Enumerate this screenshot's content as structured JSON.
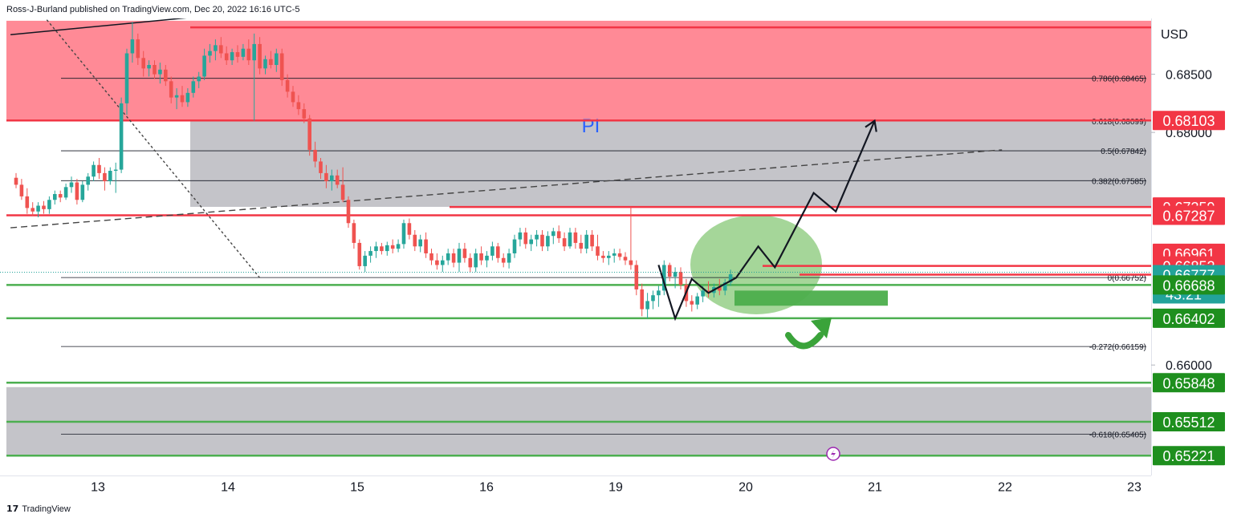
{
  "header": {
    "publisher": "Ross-J-Burland published on TradingView.com, Dec 20, 2022 16:16 UTC-5"
  },
  "footer": {
    "brand": "TradingView",
    "logo_glyph": "17"
  },
  "zone_label": "PI",
  "currency": "USD",
  "countdown": "43:21",
  "colors": {
    "up": "#26a69a",
    "down": "#ef5350",
    "resistance": "#f23645",
    "support": "#4caf50",
    "zone_red": "#ff8a96",
    "zone_gray": "#c4c4c9",
    "ellipse": "#8fcc7f",
    "current": "#22a39a"
  },
  "chart_data": {
    "type": "candlestick",
    "y_axis": {
      "range": [
        0.6505,
        0.6898
      ],
      "ticks": [
        "0.68500",
        "0.68000",
        "0.66000"
      ]
    },
    "x_axis": {
      "ticks": [
        "13",
        "14",
        "15",
        "16",
        "19",
        "20",
        "21",
        "22",
        "23"
      ]
    },
    "price_tags": [
      {
        "label": "0.68103",
        "value": 0.68103,
        "color": "#f23645"
      },
      {
        "label": "0.67359",
        "value": 0.67359,
        "color": "#f23645"
      },
      {
        "label": "0.67287",
        "value": 0.67287,
        "color": "#f23645"
      },
      {
        "label": "0.66961",
        "value": 0.66961,
        "color": "#f23645"
      },
      {
        "label": "0.66852",
        "value": 0.66852,
        "color": "#f23645"
      },
      {
        "label": "0.66777",
        "value": 0.66777,
        "color": "#22a39a"
      },
      {
        "label": "0.66688",
        "value": 0.66688,
        "color": "#1e8f1e"
      },
      {
        "label": "0.66402",
        "value": 0.66402,
        "color": "#1e8f1e"
      },
      {
        "label": "0.65848",
        "value": 0.65848,
        "color": "#1e8f1e"
      },
      {
        "label": "0.65512",
        "value": 0.65512,
        "color": "#1e8f1e"
      },
      {
        "label": "0.65221",
        "value": 0.65221,
        "color": "#1e8f1e"
      }
    ],
    "fib_levels": [
      {
        "label": "0.786(0.68465)",
        "value": 0.68465
      },
      {
        "label": "0.618(0.68099)",
        "value": 0.68099
      },
      {
        "label": "0.5(0.67842)",
        "value": 0.67842
      },
      {
        "label": "0.382(0.67585)",
        "value": 0.67585
      },
      {
        "label": "0(0.66752)",
        "value": 0.66752
      },
      {
        "label": "-0.272(0.66159)",
        "value": 0.66159
      },
      {
        "label": "-0.618(0.65405)",
        "value": 0.65405
      }
    ],
    "horizontal_lines": [
      {
        "value": 0.68903,
        "color": "#f23645"
      },
      {
        "value": 0.68103,
        "color": "#f23645"
      },
      {
        "value": 0.67359,
        "color": "#f23645"
      },
      {
        "value": 0.67287,
        "color": "#f23645"
      },
      {
        "value": 0.66852,
        "color": "#f23645"
      },
      {
        "value": 0.66777,
        "color": "#f23645"
      },
      {
        "value": 0.66688,
        "color": "#4caf50"
      },
      {
        "value": 0.66402,
        "color": "#4caf50"
      },
      {
        "value": 0.65848,
        "color": "#4caf50"
      },
      {
        "value": 0.65512,
        "color": "#4caf50"
      },
      {
        "value": 0.65221,
        "color": "#4caf50"
      }
    ],
    "zones": [
      {
        "name": "red-supply",
        "y1": 0.6896,
        "y2": 0.68103
      },
      {
        "name": "gray-pi",
        "y1": 0.68103,
        "y2": 0.6736
      },
      {
        "name": "gray-lower",
        "y1": 0.6581,
        "y2": 0.6522
      }
    ],
    "candles": [
      {
        "o": 0.6761,
        "h": 0.6765,
        "l": 0.6752,
        "c": 0.6755
      },
      {
        "o": 0.6755,
        "h": 0.676,
        "l": 0.6742,
        "c": 0.6745
      },
      {
        "o": 0.6745,
        "h": 0.6752,
        "l": 0.673,
        "c": 0.6735
      },
      {
        "o": 0.6735,
        "h": 0.674,
        "l": 0.6728,
        "c": 0.6732
      },
      {
        "o": 0.6732,
        "h": 0.674,
        "l": 0.6727,
        "c": 0.6737
      },
      {
        "o": 0.6737,
        "h": 0.6741,
        "l": 0.673,
        "c": 0.6734
      },
      {
        "o": 0.6734,
        "h": 0.6745,
        "l": 0.673,
        "c": 0.6742
      },
      {
        "o": 0.6742,
        "h": 0.675,
        "l": 0.6738,
        "c": 0.6747
      },
      {
        "o": 0.6747,
        "h": 0.675,
        "l": 0.674,
        "c": 0.6744
      },
      {
        "o": 0.6744,
        "h": 0.6756,
        "l": 0.6742,
        "c": 0.6753
      },
      {
        "o": 0.6753,
        "h": 0.6762,
        "l": 0.6748,
        "c": 0.6757
      },
      {
        "o": 0.6757,
        "h": 0.676,
        "l": 0.6738,
        "c": 0.6742
      },
      {
        "o": 0.6742,
        "h": 0.6758,
        "l": 0.674,
        "c": 0.6755
      },
      {
        "o": 0.6755,
        "h": 0.6765,
        "l": 0.675,
        "c": 0.6762
      },
      {
        "o": 0.6762,
        "h": 0.6775,
        "l": 0.6758,
        "c": 0.6772
      },
      {
        "o": 0.6772,
        "h": 0.6778,
        "l": 0.676,
        "c": 0.6765
      },
      {
        "o": 0.6765,
        "h": 0.677,
        "l": 0.675,
        "c": 0.6758
      },
      {
        "o": 0.6758,
        "h": 0.677,
        "l": 0.6755,
        "c": 0.6767
      },
      {
        "o": 0.6767,
        "h": 0.6774,
        "l": 0.6748,
        "c": 0.6768
      },
      {
        "o": 0.6768,
        "h": 0.683,
        "l": 0.6765,
        "c": 0.6825
      },
      {
        "o": 0.6825,
        "h": 0.6872,
        "l": 0.6815,
        "c": 0.6868
      },
      {
        "o": 0.6868,
        "h": 0.6895,
        "l": 0.686,
        "c": 0.688
      },
      {
        "o": 0.688,
        "h": 0.6885,
        "l": 0.6858,
        "c": 0.6864
      },
      {
        "o": 0.6864,
        "h": 0.687,
        "l": 0.6848,
        "c": 0.6855
      },
      {
        "o": 0.6855,
        "h": 0.6862,
        "l": 0.6848,
        "c": 0.6858
      },
      {
        "o": 0.6858,
        "h": 0.6862,
        "l": 0.6846,
        "c": 0.685
      },
      {
        "o": 0.685,
        "h": 0.686,
        "l": 0.6842,
        "c": 0.6854
      },
      {
        "o": 0.6854,
        "h": 0.6858,
        "l": 0.684,
        "c": 0.6844
      },
      {
        "o": 0.6844,
        "h": 0.6848,
        "l": 0.6825,
        "c": 0.683
      },
      {
        "o": 0.683,
        "h": 0.6838,
        "l": 0.682,
        "c": 0.6832
      },
      {
        "o": 0.6832,
        "h": 0.684,
        "l": 0.6822,
        "c": 0.6826
      },
      {
        "o": 0.6826,
        "h": 0.6838,
        "l": 0.6822,
        "c": 0.6834
      },
      {
        "o": 0.6834,
        "h": 0.6848,
        "l": 0.683,
        "c": 0.6844
      },
      {
        "o": 0.6844,
        "h": 0.6852,
        "l": 0.6838,
        "c": 0.6848
      },
      {
        "o": 0.6848,
        "h": 0.6872,
        "l": 0.6845,
        "c": 0.6866
      },
      {
        "o": 0.6866,
        "h": 0.6876,
        "l": 0.686,
        "c": 0.687
      },
      {
        "o": 0.687,
        "h": 0.688,
        "l": 0.6862,
        "c": 0.6875
      },
      {
        "o": 0.6875,
        "h": 0.6882,
        "l": 0.6864,
        "c": 0.6868
      },
      {
        "o": 0.6868,
        "h": 0.6874,
        "l": 0.6858,
        "c": 0.6862
      },
      {
        "o": 0.6862,
        "h": 0.6872,
        "l": 0.6858,
        "c": 0.6869
      },
      {
        "o": 0.6869,
        "h": 0.6875,
        "l": 0.686,
        "c": 0.6865
      },
      {
        "o": 0.6865,
        "h": 0.6876,
        "l": 0.6862,
        "c": 0.6872
      },
      {
        "o": 0.6872,
        "h": 0.688,
        "l": 0.6858,
        "c": 0.6862
      },
      {
        "o": 0.6862,
        "h": 0.6885,
        "l": 0.681,
        "c": 0.6876
      },
      {
        "o": 0.6876,
        "h": 0.6882,
        "l": 0.685,
        "c": 0.6855
      },
      {
        "o": 0.6855,
        "h": 0.6866,
        "l": 0.685,
        "c": 0.6863
      },
      {
        "o": 0.6863,
        "h": 0.687,
        "l": 0.6855,
        "c": 0.6858
      },
      {
        "o": 0.6858,
        "h": 0.6872,
        "l": 0.6852,
        "c": 0.6868
      },
      {
        "o": 0.6868,
        "h": 0.6872,
        "l": 0.684,
        "c": 0.6845
      },
      {
        "o": 0.6845,
        "h": 0.685,
        "l": 0.683,
        "c": 0.6835
      },
      {
        "o": 0.6835,
        "h": 0.684,
        "l": 0.6822,
        "c": 0.6826
      },
      {
        "o": 0.6826,
        "h": 0.6832,
        "l": 0.6815,
        "c": 0.682
      },
      {
        "o": 0.682,
        "h": 0.6825,
        "l": 0.6808,
        "c": 0.6812
      },
      {
        "o": 0.6812,
        "h": 0.6815,
        "l": 0.678,
        "c": 0.6785
      },
      {
        "o": 0.6785,
        "h": 0.6792,
        "l": 0.677,
        "c": 0.6775
      },
      {
        "o": 0.6775,
        "h": 0.6778,
        "l": 0.676,
        "c": 0.6765
      },
      {
        "o": 0.6765,
        "h": 0.6772,
        "l": 0.6752,
        "c": 0.6758
      },
      {
        "o": 0.6758,
        "h": 0.6768,
        "l": 0.675,
        "c": 0.6763
      },
      {
        "o": 0.6763,
        "h": 0.6768,
        "l": 0.6752,
        "c": 0.6755
      },
      {
        "o": 0.6755,
        "h": 0.677,
        "l": 0.674,
        "c": 0.6742
      },
      {
        "o": 0.6742,
        "h": 0.6745,
        "l": 0.6718,
        "c": 0.6722
      },
      {
        "o": 0.6722,
        "h": 0.6725,
        "l": 0.67,
        "c": 0.6705
      },
      {
        "o": 0.6705,
        "h": 0.6708,
        "l": 0.6682,
        "c": 0.6685
      },
      {
        "o": 0.6685,
        "h": 0.6698,
        "l": 0.668,
        "c": 0.6694
      },
      {
        "o": 0.6694,
        "h": 0.6702,
        "l": 0.6688,
        "c": 0.6698
      },
      {
        "o": 0.6698,
        "h": 0.6706,
        "l": 0.6692,
        "c": 0.6702
      },
      {
        "o": 0.6702,
        "h": 0.6705,
        "l": 0.6695,
        "c": 0.6698
      },
      {
        "o": 0.6698,
        "h": 0.6706,
        "l": 0.6694,
        "c": 0.6703
      },
      {
        "o": 0.6703,
        "h": 0.6708,
        "l": 0.6696,
        "c": 0.67
      },
      {
        "o": 0.67,
        "h": 0.6708,
        "l": 0.6697,
        "c": 0.6704
      },
      {
        "o": 0.6704,
        "h": 0.6725,
        "l": 0.67,
        "c": 0.6722
      },
      {
        "o": 0.6722,
        "h": 0.6726,
        "l": 0.6708,
        "c": 0.6712
      },
      {
        "o": 0.6712,
        "h": 0.6716,
        "l": 0.6698,
        "c": 0.6702
      },
      {
        "o": 0.6702,
        "h": 0.6712,
        "l": 0.6697,
        "c": 0.6708
      },
      {
        "o": 0.6708,
        "h": 0.6714,
        "l": 0.6692,
        "c": 0.6696
      },
      {
        "o": 0.6696,
        "h": 0.67,
        "l": 0.6686,
        "c": 0.669
      },
      {
        "o": 0.669,
        "h": 0.6696,
        "l": 0.6682,
        "c": 0.6686
      },
      {
        "o": 0.6686,
        "h": 0.6694,
        "l": 0.668,
        "c": 0.669
      },
      {
        "o": 0.669,
        "h": 0.67,
        "l": 0.6686,
        "c": 0.6696
      },
      {
        "o": 0.6696,
        "h": 0.67,
        "l": 0.6684,
        "c": 0.6688
      },
      {
        "o": 0.6688,
        "h": 0.6705,
        "l": 0.668,
        "c": 0.67
      },
      {
        "o": 0.67,
        "h": 0.6705,
        "l": 0.6688,
        "c": 0.6692
      },
      {
        "o": 0.6692,
        "h": 0.6696,
        "l": 0.668,
        "c": 0.6684
      },
      {
        "o": 0.6684,
        "h": 0.67,
        "l": 0.668,
        "c": 0.6696
      },
      {
        "o": 0.6696,
        "h": 0.6702,
        "l": 0.6686,
        "c": 0.669
      },
      {
        "o": 0.669,
        "h": 0.6698,
        "l": 0.6684,
        "c": 0.6694
      },
      {
        "o": 0.6694,
        "h": 0.6706,
        "l": 0.669,
        "c": 0.6702
      },
      {
        "o": 0.6702,
        "h": 0.6705,
        "l": 0.6688,
        "c": 0.6692
      },
      {
        "o": 0.6692,
        "h": 0.6696,
        "l": 0.6684,
        "c": 0.6688
      },
      {
        "o": 0.6688,
        "h": 0.67,
        "l": 0.6683,
        "c": 0.6696
      },
      {
        "o": 0.6696,
        "h": 0.6712,
        "l": 0.6692,
        "c": 0.6708
      },
      {
        "o": 0.6708,
        "h": 0.6718,
        "l": 0.6702,
        "c": 0.6714
      },
      {
        "o": 0.6714,
        "h": 0.6718,
        "l": 0.67,
        "c": 0.6704
      },
      {
        "o": 0.6704,
        "h": 0.6712,
        "l": 0.6698,
        "c": 0.6708
      },
      {
        "o": 0.6708,
        "h": 0.6716,
        "l": 0.6702,
        "c": 0.6712
      },
      {
        "o": 0.6712,
        "h": 0.6716,
        "l": 0.6698,
        "c": 0.6702
      },
      {
        "o": 0.6702,
        "h": 0.6715,
        "l": 0.6698,
        "c": 0.6711
      },
      {
        "o": 0.6711,
        "h": 0.6718,
        "l": 0.6704,
        "c": 0.6715
      },
      {
        "o": 0.6715,
        "h": 0.672,
        "l": 0.6705,
        "c": 0.6709
      },
      {
        "o": 0.6709,
        "h": 0.6714,
        "l": 0.6698,
        "c": 0.6702
      },
      {
        "o": 0.6702,
        "h": 0.6718,
        "l": 0.67,
        "c": 0.6714
      },
      {
        "o": 0.6714,
        "h": 0.6718,
        "l": 0.67,
        "c": 0.6705
      },
      {
        "o": 0.6705,
        "h": 0.6712,
        "l": 0.6696,
        "c": 0.67
      },
      {
        "o": 0.67,
        "h": 0.6716,
        "l": 0.6696,
        "c": 0.6712
      },
      {
        "o": 0.6712,
        "h": 0.6716,
        "l": 0.6698,
        "c": 0.6702
      },
      {
        "o": 0.6702,
        "h": 0.6712,
        "l": 0.669,
        "c": 0.6694
      },
      {
        "o": 0.6694,
        "h": 0.6698,
        "l": 0.6688,
        "c": 0.6692
      },
      {
        "o": 0.6692,
        "h": 0.6698,
        "l": 0.6686,
        "c": 0.6694
      },
      {
        "o": 0.6694,
        "h": 0.67,
        "l": 0.6688,
        "c": 0.6696
      },
      {
        "o": 0.6696,
        "h": 0.67,
        "l": 0.669,
        "c": 0.6693
      },
      {
        "o": 0.6693,
        "h": 0.6697,
        "l": 0.6686,
        "c": 0.669
      },
      {
        "o": 0.669,
        "h": 0.6736,
        "l": 0.6682,
        "c": 0.6686
      },
      {
        "o": 0.6686,
        "h": 0.669,
        "l": 0.666,
        "c": 0.6665
      },
      {
        "o": 0.6665,
        "h": 0.667,
        "l": 0.6642,
        "c": 0.6648
      },
      {
        "o": 0.6648,
        "h": 0.6662,
        "l": 0.664,
        "c": 0.6655
      },
      {
        "o": 0.6655,
        "h": 0.6664,
        "l": 0.6648,
        "c": 0.666
      },
      {
        "o": 0.666,
        "h": 0.6668,
        "l": 0.665,
        "c": 0.6664
      },
      {
        "o": 0.6664,
        "h": 0.669,
        "l": 0.666,
        "c": 0.6686
      },
      {
        "o": 0.6686,
        "h": 0.6688,
        "l": 0.6672,
        "c": 0.6676
      },
      {
        "o": 0.6676,
        "h": 0.6684,
        "l": 0.6666,
        "c": 0.668
      },
      {
        "o": 0.668,
        "h": 0.6684,
        "l": 0.6665,
        "c": 0.6669
      },
      {
        "o": 0.6669,
        "h": 0.6674,
        "l": 0.665,
        "c": 0.6655
      },
      {
        "o": 0.6655,
        "h": 0.666,
        "l": 0.6646,
        "c": 0.6652
      },
      {
        "o": 0.6652,
        "h": 0.6662,
        "l": 0.6648,
        "c": 0.6659
      },
      {
        "o": 0.6659,
        "h": 0.6668,
        "l": 0.6654,
        "c": 0.6664
      },
      {
        "o": 0.6664,
        "h": 0.6672,
        "l": 0.6658,
        "c": 0.6662
      },
      {
        "o": 0.6662,
        "h": 0.667,
        "l": 0.6658,
        "c": 0.6667
      },
      {
        "o": 0.6667,
        "h": 0.6674,
        "l": 0.666,
        "c": 0.6664
      },
      {
        "o": 0.6664,
        "h": 0.6674,
        "l": 0.666,
        "c": 0.6671
      },
      {
        "o": 0.6671,
        "h": 0.6682,
        "l": 0.6668,
        "c": 0.6678
      }
    ],
    "trendlines": [
      {
        "style": "solid",
        "color": "#131722",
        "from": {
          "i": -1,
          "v": 0.6884
        },
        "to": {
          "i": 45,
          "v": 0.6905
        }
      },
      {
        "style": "dashed",
        "color": "#444444",
        "from": {
          "i": -1,
          "v": 0.6718
        },
        "to": {
          "i": 178,
          "v": 0.6785
        }
      },
      {
        "style": "dotted",
        "color": "#444444",
        "from": {
          "i": 5,
          "v": 0.69
        },
        "to": {
          "i": 44,
          "v": 0.6675
        }
      }
    ],
    "projection": [
      {
        "i": 116,
        "v": 0.6686
      },
      {
        "i": 119,
        "v": 0.664
      },
      {
        "i": 122,
        "v": 0.6674
      },
      {
        "i": 125,
        "v": 0.6662
      },
      {
        "i": 130,
        "v": 0.6675
      },
      {
        "i": 134,
        "v": 0.6702
      },
      {
        "i": 137,
        "v": 0.6684
      },
      {
        "i": 144,
        "v": 0.6748
      },
      {
        "i": 148,
        "v": 0.6732
      },
      {
        "i": 155,
        "v": 0.681
      }
    ]
  }
}
